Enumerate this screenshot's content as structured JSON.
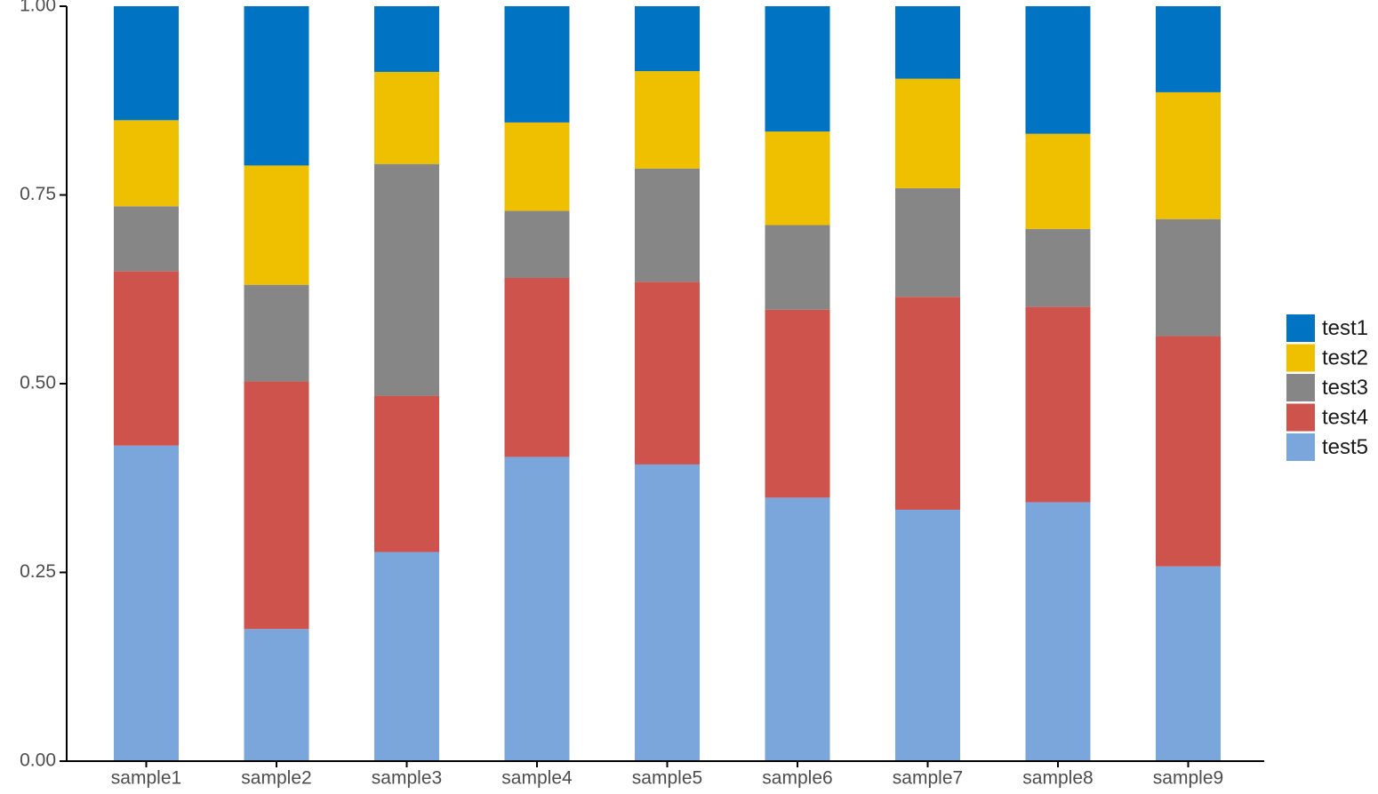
{
  "chart_data": {
    "type": "bar",
    "stacked": true,
    "title": "",
    "xlabel": "",
    "ylabel": "",
    "ylim": [
      0,
      1
    ],
    "yticks": [
      "0.00",
      "0.25",
      "0.50",
      "0.75",
      "1.00"
    ],
    "grid": false,
    "legend_position": "right",
    "categories": [
      "sample1",
      "sample2",
      "sample3",
      "sample4",
      "sample5",
      "sample6",
      "sample7",
      "sample8",
      "sample9"
    ],
    "series": [
      {
        "name": "test1",
        "color": "#0073c2",
        "values": [
          0.151,
          0.211,
          0.087,
          0.154,
          0.086,
          0.166,
          0.096,
          0.169,
          0.114
        ]
      },
      {
        "name": "test2",
        "color": "#efc000",
        "values": [
          0.114,
          0.158,
          0.122,
          0.117,
          0.129,
          0.124,
          0.145,
          0.126,
          0.168
        ]
      },
      {
        "name": "test3",
        "color": "#868686",
        "values": [
          0.086,
          0.128,
          0.307,
          0.089,
          0.15,
          0.112,
          0.144,
          0.103,
          0.155
        ]
      },
      {
        "name": "test4",
        "color": "#cd534c",
        "values": [
          0.231,
          0.328,
          0.207,
          0.237,
          0.242,
          0.249,
          0.282,
          0.259,
          0.305
        ]
      },
      {
        "name": "test5",
        "color": "#7aa6dc",
        "values": [
          0.418,
          0.175,
          0.277,
          0.403,
          0.393,
          0.349,
          0.333,
          0.343,
          0.258
        ]
      }
    ]
  }
}
